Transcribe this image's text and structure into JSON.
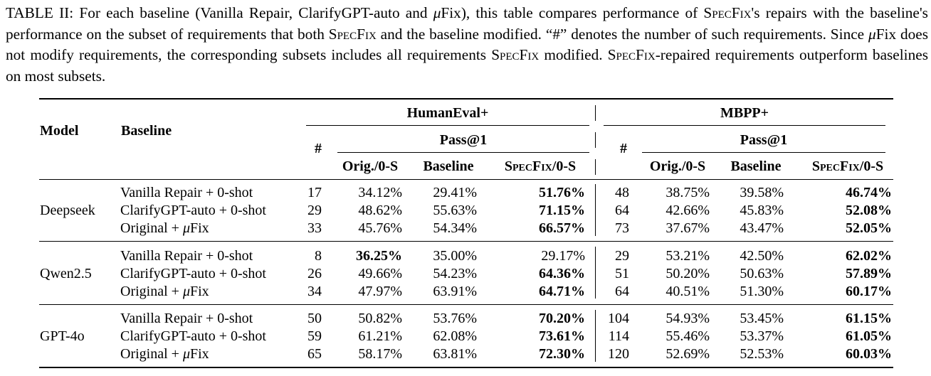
{
  "caption": {
    "label": "TABLE II:",
    "p1": " For each baseline (Vanilla Repair, ClarifyGPT-auto and ",
    "mu": "μ",
    "p2": "Fix), this table compares performance of ",
    "specfix": "SpecFix",
    "p3": "'s repairs with the baseline's performance on the subset of requirements that both ",
    "p4": " and the baseline modified. “#” denotes the number of such requirements. Since ",
    "p5": "Fix does not modify requirements, the corresponding subsets includes all requirements ",
    "p6": " modified. ",
    "p7": "-repaired requirements outperform baselines on most subsets."
  },
  "headers": {
    "model": "Model",
    "baseline": "Baseline",
    "group1": "HumanEval+",
    "group2": "MBPP+",
    "count": "#",
    "pass": "Pass@1",
    "orig": "Orig./0-S",
    "base": "Baseline",
    "spec": "SpecFix/0-S"
  },
  "rows": [
    {
      "model": "",
      "baseline": "Vanilla Repair + 0-shot",
      "he_n": "17",
      "he_orig": "34.12%",
      "he_base": "29.41%",
      "he_spec": "51.76%",
      "he_best": "spec",
      "mb_n": "48",
      "mb_orig": "38.75%",
      "mb_base": "39.58%",
      "mb_spec": "46.74%",
      "mb_best": "spec"
    },
    {
      "model": "Deepseek",
      "baseline": "ClarifyGPT-auto + 0-shot",
      "he_n": "29",
      "he_orig": "48.62%",
      "he_base": "55.63%",
      "he_spec": "71.15%",
      "he_best": "spec",
      "mb_n": "64",
      "mb_orig": "42.66%",
      "mb_base": "45.83%",
      "mb_spec": "52.08%",
      "mb_best": "spec"
    },
    {
      "model": "",
      "baseline": "Original + μFix",
      "he_n": "33",
      "he_orig": "45.76%",
      "he_base": "54.34%",
      "he_spec": "66.57%",
      "he_best": "spec",
      "mb_n": "73",
      "mb_orig": "37.67%",
      "mb_base": "43.47%",
      "mb_spec": "52.05%",
      "mb_best": "spec"
    },
    {
      "model": "",
      "baseline": "Vanilla Repair + 0-shot",
      "he_n": "8",
      "he_orig": "36.25%",
      "he_base": "35.00%",
      "he_spec": "29.17%",
      "he_best": "orig",
      "mb_n": "29",
      "mb_orig": "53.21%",
      "mb_base": "42.50%",
      "mb_spec": "62.02%",
      "mb_best": "spec"
    },
    {
      "model": "Qwen2.5",
      "baseline": "ClarifyGPT-auto + 0-shot",
      "he_n": "26",
      "he_orig": "49.66%",
      "he_base": "54.23%",
      "he_spec": "64.36%",
      "he_best": "spec",
      "mb_n": "51",
      "mb_orig": "50.20%",
      "mb_base": "50.63%",
      "mb_spec": "57.89%",
      "mb_best": "spec"
    },
    {
      "model": "",
      "baseline": "Original + μFix",
      "he_n": "34",
      "he_orig": "47.97%",
      "he_base": "63.91%",
      "he_spec": "64.71%",
      "he_best": "spec",
      "mb_n": "64",
      "mb_orig": "40.51%",
      "mb_base": "51.30%",
      "mb_spec": "60.17%",
      "mb_best": "spec"
    },
    {
      "model": "",
      "baseline": "Vanilla Repair + 0-shot",
      "he_n": "50",
      "he_orig": "50.82%",
      "he_base": "53.76%",
      "he_spec": "70.20%",
      "he_best": "spec",
      "mb_n": "104",
      "mb_orig": "54.93%",
      "mb_base": "53.45%",
      "mb_spec": "61.15%",
      "mb_best": "spec"
    },
    {
      "model": "GPT-4o",
      "baseline": "ClarifyGPT-auto + 0-shot",
      "he_n": "59",
      "he_orig": "61.21%",
      "he_base": "62.08%",
      "he_spec": "73.61%",
      "he_best": "spec",
      "mb_n": "114",
      "mb_orig": "55.46%",
      "mb_base": "53.37%",
      "mb_spec": "61.05%",
      "mb_best": "spec"
    },
    {
      "model": "",
      "baseline": "Original + μFix",
      "he_n": "65",
      "he_orig": "58.17%",
      "he_base": "63.81%",
      "he_spec": "72.30%",
      "he_best": "spec",
      "mb_n": "120",
      "mb_orig": "52.69%",
      "mb_base": "52.53%",
      "mb_spec": "60.03%",
      "mb_best": "spec"
    }
  ]
}
